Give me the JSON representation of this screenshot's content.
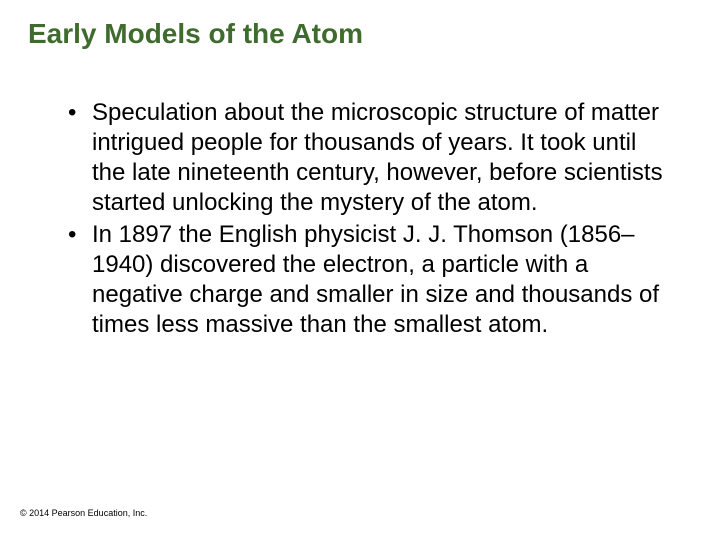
{
  "title": "Early Models of the Atom",
  "title_color": "#3f6b2e",
  "title_fontsize": 28,
  "body_fontsize": 24,
  "body_lineheight": 30,
  "text_color": "#000000",
  "background_color": "#ffffff",
  "bullets": [
    "Speculation about the microscopic structure of matter intrigued people for thousands of years. It took until the late nineteenth century, however, before scientists started unlocking the mystery of the atom.",
    "In 1897 the English physicist J. J. Thomson (1856– 1940) discovered the electron, a particle with a negative charge and smaller in size and thousands of times less massive than the smallest atom."
  ],
  "bullet_glyph": "•",
  "footer": "© 2014 Pearson Education, Inc."
}
